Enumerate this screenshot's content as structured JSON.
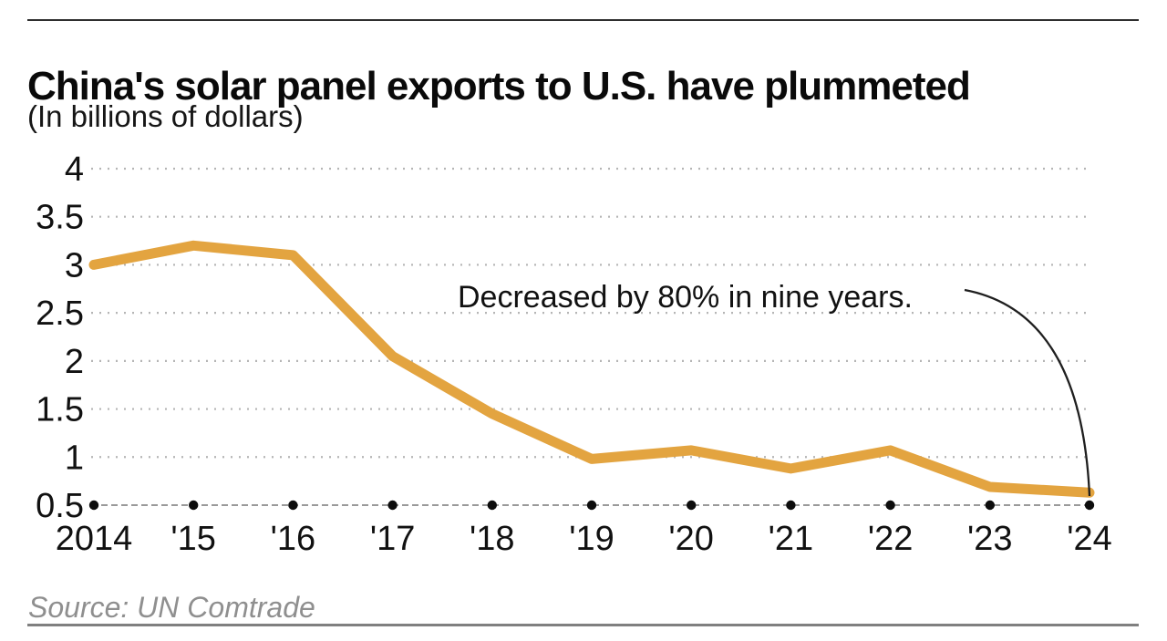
{
  "header": {
    "title": "China's solar panel exports to U.S. have plummeted",
    "subtitle": "(In billions of dollars)"
  },
  "chart_data": {
    "type": "line",
    "title": "China's solar panel exports to U.S. have plummeted",
    "subtitle": "(In billions of dollars)",
    "unit": "billions of dollars",
    "x": [
      2014,
      2015,
      2016,
      2017,
      2018,
      2019,
      2020,
      2021,
      2022,
      2023,
      2024
    ],
    "x_tick_labels": [
      "2014",
      "'15",
      "'16",
      "'17",
      "'18",
      "'19",
      "'20",
      "'21",
      "'22",
      "'23",
      "'24"
    ],
    "series": [
      {
        "name": "China solar panel exports to U.S.",
        "values": [
          3.0,
          3.2,
          3.1,
          2.05,
          1.45,
          0.98,
          1.07,
          0.88,
          1.07,
          0.69,
          0.63
        ]
      }
    ],
    "ylim": [
      0.5,
      4
    ],
    "y_ticks": [
      4,
      3.5,
      3,
      2.5,
      2,
      1.5,
      1,
      0.5
    ],
    "y_tick_labels": [
      "4",
      "3.5",
      "3",
      "2.5",
      "2",
      "1.5",
      "1",
      "0.5"
    ],
    "grid": "horizontal-dotted",
    "legend": "none",
    "annotation": {
      "text": "Decreased by 80% in nine years.",
      "arrow_points_to_year": 2024
    },
    "line_color": "#E3A440"
  },
  "colors": {
    "line": "#E3A440",
    "gridline": "#b5b5b5",
    "axis": "#9a9a9a",
    "tick_dot": "#0d0d0d",
    "annotation_arrow": "#1f1f1f",
    "text": "#111111",
    "source_text": "#8f8f8f"
  },
  "source": {
    "label": "Source: UN Comtrade"
  }
}
